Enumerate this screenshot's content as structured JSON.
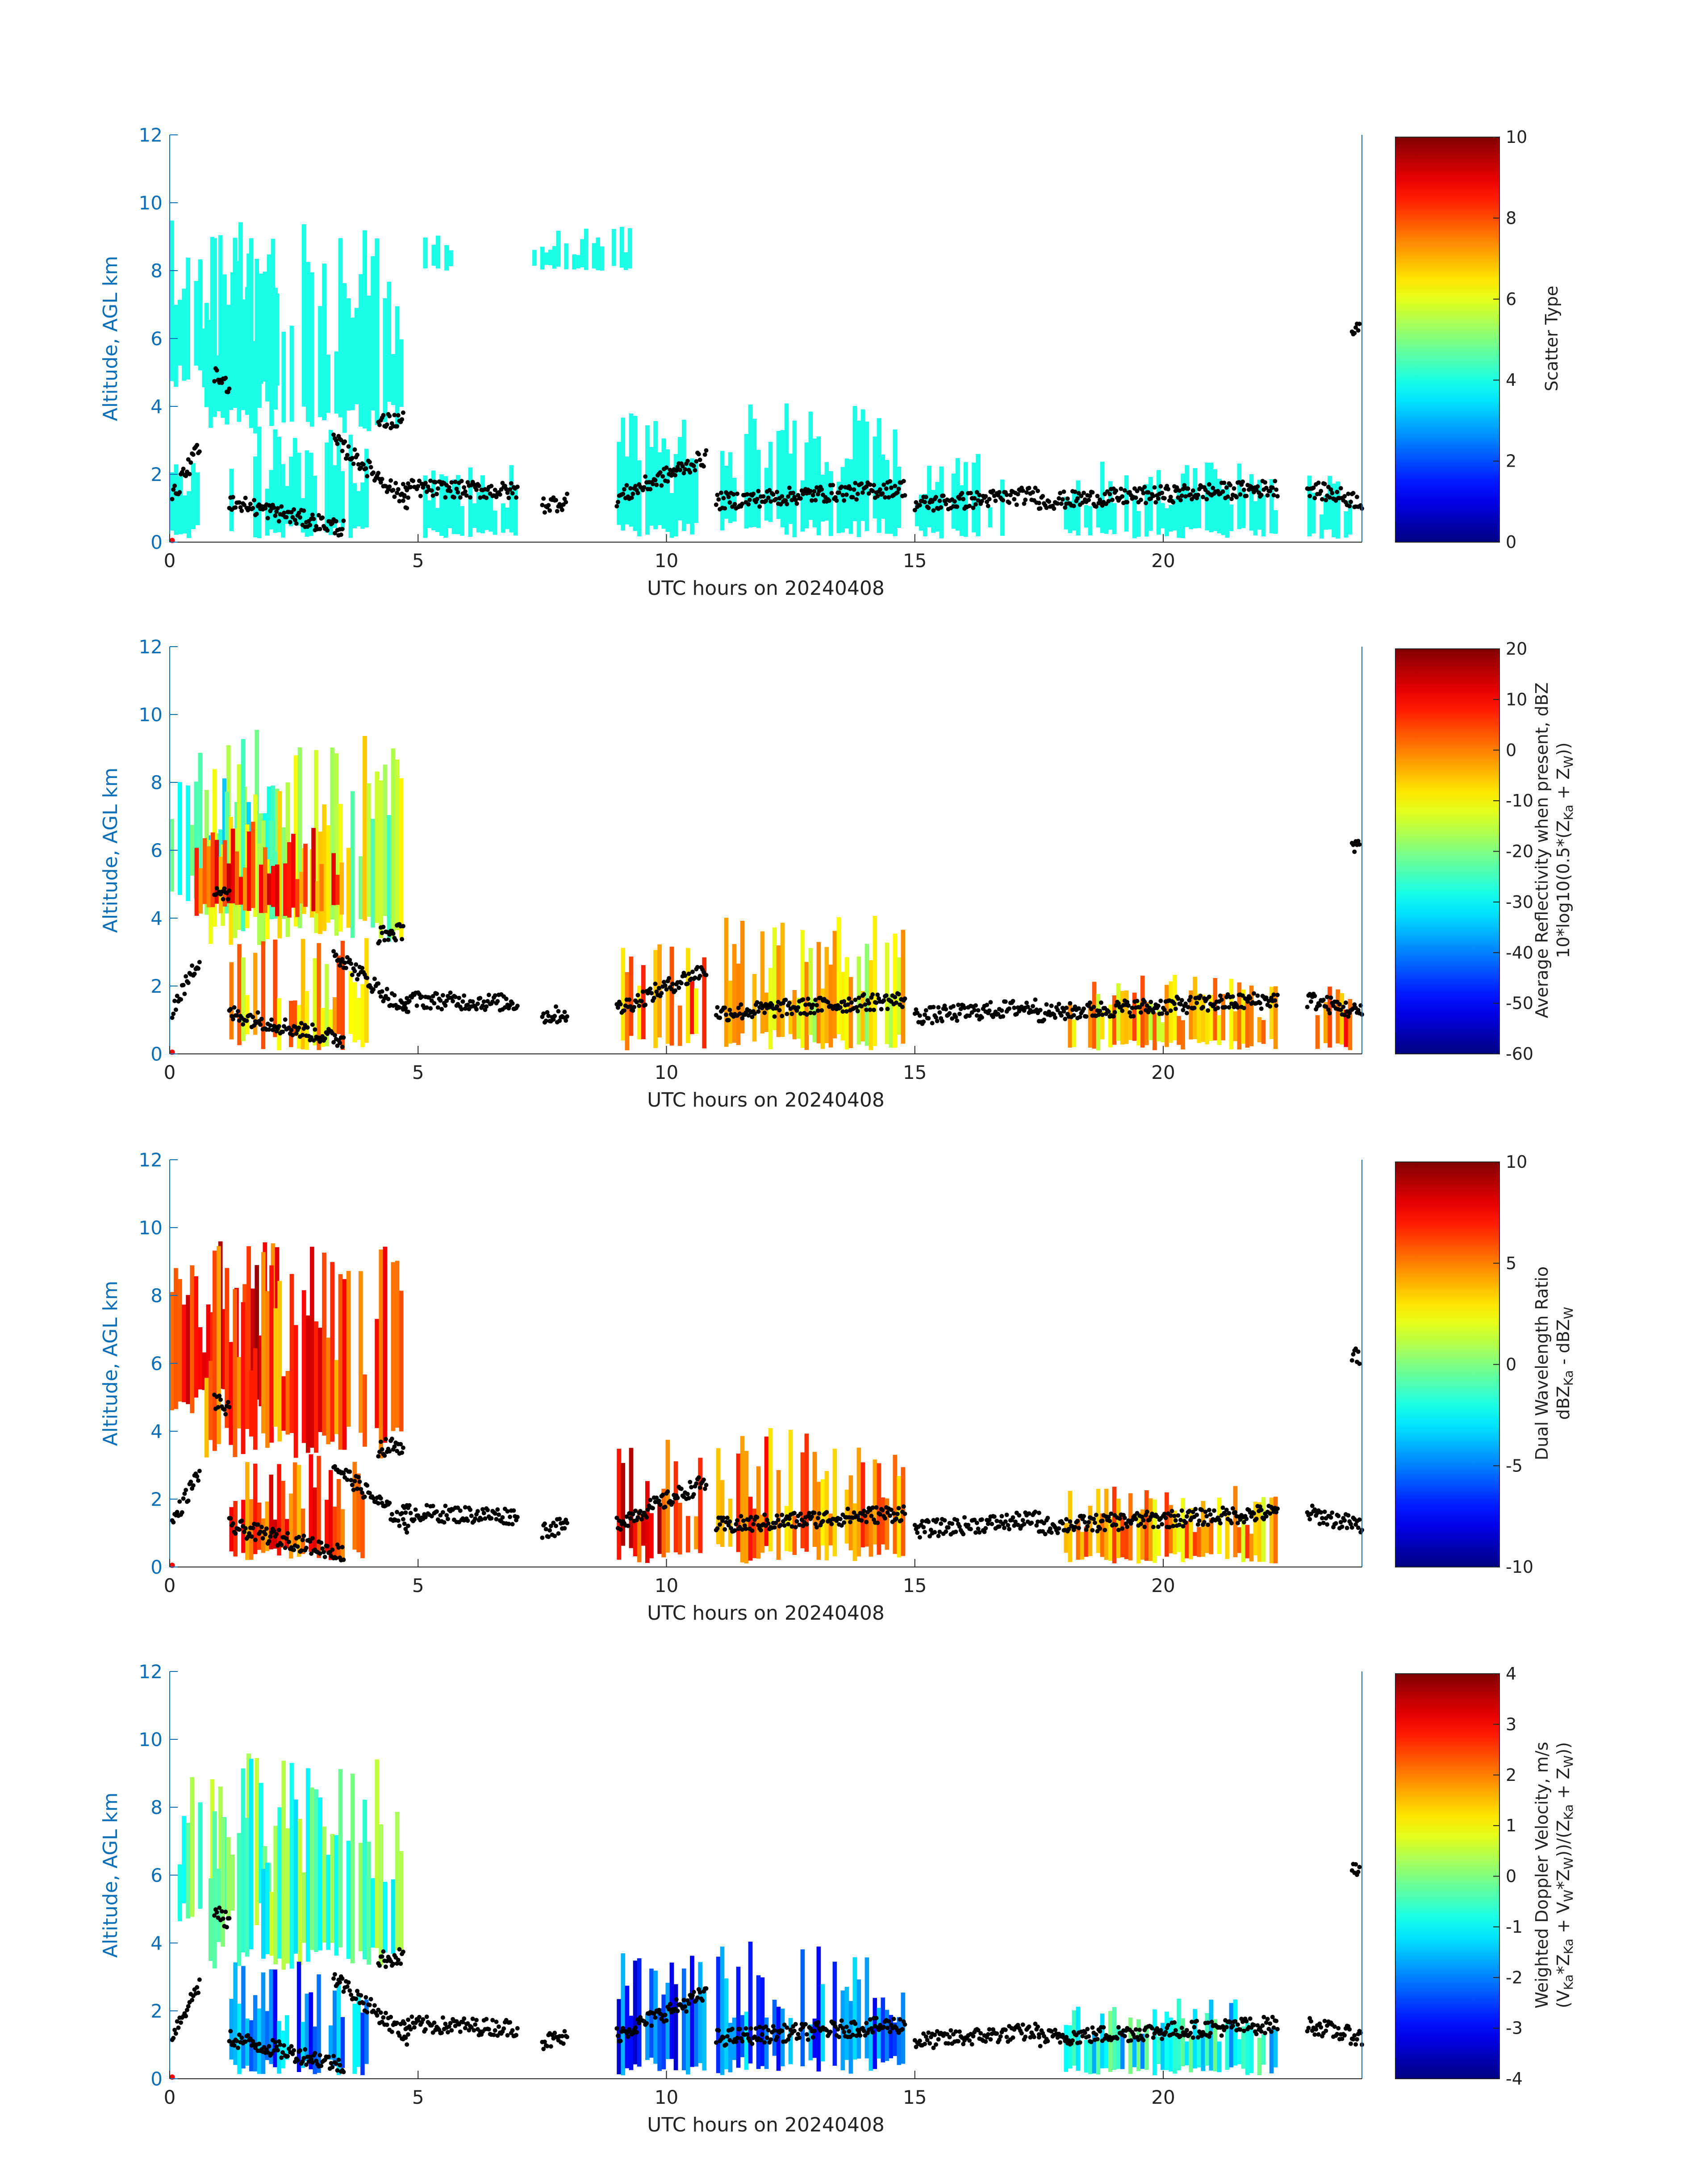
{
  "chart_data": [
    {
      "type": "heatmap",
      "panel": 1,
      "xlabel": "UTC hours on 20240408",
      "ylabel": "Altitude, AGL km",
      "xlim": [
        0,
        24
      ],
      "ylim": [
        0,
        12
      ],
      "xticks": [
        "0",
        "5",
        "10",
        "15",
        "20"
      ],
      "yticks": [
        "0",
        "2",
        "4",
        "6",
        "8",
        "10",
        "12"
      ],
      "colorbar": {
        "label_lines": [
          "Scatter Type"
        ],
        "min": 0,
        "max": 10,
        "ticks": [
          "0",
          "2",
          "4",
          "6",
          "8",
          "10"
        ]
      },
      "layers": [
        {
          "x0": 0.0,
          "x1": 0.6,
          "y0": 0.1,
          "y1": 3.0,
          "value": 4
        },
        {
          "x0": 0.0,
          "x1": 2.2,
          "y0": 4.5,
          "y1": 9.6,
          "value": 4
        },
        {
          "x0": 0.7,
          "x1": 4.7,
          "y0": 3.2,
          "y1": 9.5,
          "value": 4
        },
        {
          "x0": 5.1,
          "x1": 5.7,
          "y0": 8.0,
          "y1": 9.2,
          "value": 4
        },
        {
          "x0": 7.3,
          "x1": 9.3,
          "y0": 8.0,
          "y1": 9.3,
          "value": 4
        },
        {
          "x0": 1.2,
          "x1": 4.0,
          "y0": 0.1,
          "y1": 3.5,
          "value": 4
        },
        {
          "x0": 5.1,
          "x1": 7.0,
          "y0": 0.1,
          "y1": 2.3,
          "value": 4
        },
        {
          "x0": 9.0,
          "x1": 10.8,
          "y0": 0.1,
          "y1": 3.8,
          "value": 4
        },
        {
          "x0": 11.0,
          "x1": 14.8,
          "y0": 0.1,
          "y1": 4.1,
          "value": 4
        },
        {
          "x0": 15.0,
          "x1": 16.8,
          "y0": 0.1,
          "y1": 2.6,
          "value": 4
        },
        {
          "x0": 18.0,
          "x1": 22.3,
          "y0": 0.1,
          "y1": 2.4,
          "value": 4
        },
        {
          "x0": 22.9,
          "x1": 23.8,
          "y0": 0.1,
          "y1": 2.1,
          "value": 4
        }
      ]
    },
    {
      "type": "heatmap",
      "panel": 2,
      "xlabel": "UTC hours on 20240408",
      "ylabel": "Altitude, AGL km",
      "xlim": [
        0,
        24
      ],
      "ylim": [
        0,
        12
      ],
      "xticks": [
        "0",
        "5",
        "10",
        "15",
        "20"
      ],
      "yticks": [
        "0",
        "2",
        "4",
        "6",
        "8",
        "10",
        "12"
      ],
      "colorbar": {
        "label_lines": [
          "Average Reflectivity when present, dBZ",
          "10*log10(0.5*(Z",
          "Ka",
          " + Z",
          "W",
          "))"
        ],
        "min": -60,
        "max": 20,
        "ticks": [
          "-60",
          "-50",
          "-40",
          "-30",
          "-20",
          "-10",
          "0",
          "10",
          "20"
        ]
      },
      "layers": [
        {
          "x0": 0.0,
          "x1": 2.2,
          "y0": 4.5,
          "y1": 9.6,
          "value": -25
        },
        {
          "x0": 0.7,
          "x1": 4.7,
          "y0": 3.2,
          "y1": 9.5,
          "value": -15
        },
        {
          "x0": 0.5,
          "x1": 3.5,
          "y0": 4.0,
          "y1": 7.0,
          "value": 5
        },
        {
          "x0": 1.2,
          "x1": 4.0,
          "y0": 0.1,
          "y1": 3.5,
          "value": -5
        },
        {
          "x0": 9.0,
          "x1": 10.8,
          "y0": 0.1,
          "y1": 3.8,
          "value": 0
        },
        {
          "x0": 11.0,
          "x1": 14.8,
          "y0": 0.1,
          "y1": 4.1,
          "value": -10
        },
        {
          "x0": 18.0,
          "x1": 22.3,
          "y0": 0.1,
          "y1": 2.4,
          "value": -5
        },
        {
          "x0": 22.9,
          "x1": 23.8,
          "y0": 0.1,
          "y1": 2.1,
          "value": 0
        }
      ]
    },
    {
      "type": "heatmap",
      "panel": 3,
      "xlabel": "UTC hours on 20240408",
      "ylabel": "Altitude, AGL km",
      "xlim": [
        0,
        24
      ],
      "ylim": [
        0,
        12
      ],
      "xticks": [
        "0",
        "5",
        "10",
        "15",
        "20"
      ],
      "yticks": [
        "0",
        "2",
        "4",
        "6",
        "8",
        "10",
        "12"
      ],
      "colorbar": {
        "label_lines": [
          "Dual Wavelength Ratio",
          "dBZ",
          "Ka",
          " - dBZ",
          "W"
        ],
        "min": -10,
        "max": 10,
        "ticks": [
          "-10",
          "-5",
          "0",
          "5",
          "10"
        ]
      },
      "layers": [
        {
          "x0": 0.0,
          "x1": 2.2,
          "y0": 4.5,
          "y1": 9.6,
          "value": 7
        },
        {
          "x0": 0.7,
          "x1": 4.7,
          "y0": 3.2,
          "y1": 9.5,
          "value": 6
        },
        {
          "x0": 1.2,
          "x1": 4.0,
          "y0": 0.1,
          "y1": 3.5,
          "value": 6
        },
        {
          "x0": 9.0,
          "x1": 10.8,
          "y0": 0.1,
          "y1": 3.8,
          "value": 7
        },
        {
          "x0": 11.0,
          "x1": 14.8,
          "y0": 0.1,
          "y1": 4.1,
          "value": 5
        },
        {
          "x0": 18.0,
          "x1": 22.3,
          "y0": 0.1,
          "y1": 2.4,
          "value": 4
        }
      ]
    },
    {
      "type": "heatmap",
      "panel": 4,
      "xlabel": "UTC hours on 20240408",
      "ylabel": "Altitude, AGL km",
      "xlim": [
        0,
        24
      ],
      "ylim": [
        0,
        12
      ],
      "xticks": [
        "0",
        "5",
        "10",
        "15",
        "20"
      ],
      "yticks": [
        "0",
        "2",
        "4",
        "6",
        "8",
        "10",
        "12"
      ],
      "colorbar": {
        "label_lines": [
          "Weighted Doppler Velocity, m/s",
          "(V",
          "Ka",
          "*Z",
          "Ka",
          " + V",
          "W",
          "*Z",
          "W",
          "))/(Z",
          "Ka",
          " + Z",
          "W",
          "))"
        ],
        "min": -4,
        "max": 4,
        "ticks": [
          "-4",
          "-3",
          "-2",
          "-1",
          "0",
          "1",
          "2",
          "3",
          "4"
        ]
      },
      "layers": [
        {
          "x0": 0.0,
          "x1": 2.2,
          "y0": 4.5,
          "y1": 9.6,
          "value": 0
        },
        {
          "x0": 0.7,
          "x1": 4.7,
          "y0": 3.2,
          "y1": 9.5,
          "value": -0.3
        },
        {
          "x0": 1.2,
          "x1": 4.0,
          "y0": 0.1,
          "y1": 3.5,
          "value": -2
        },
        {
          "x0": 9.0,
          "x1": 10.8,
          "y0": 0.1,
          "y1": 3.8,
          "value": -2.5
        },
        {
          "x0": 11.0,
          "x1": 14.8,
          "y0": 0.1,
          "y1": 4.1,
          "value": -2
        },
        {
          "x0": 18.0,
          "x1": 22.3,
          "y0": 0.1,
          "y1": 2.4,
          "value": -1
        }
      ]
    }
  ],
  "cloud_base_points": {
    "marker_color": "#000000",
    "segments": [
      {
        "x0": 0.05,
        "x1": 0.6,
        "y0": 1.3,
        "y1": 2.8
      },
      {
        "x0": 0.9,
        "x1": 1.2,
        "y0": 4.9,
        "y1": 4.6
      },
      {
        "x0": 1.2,
        "x1": 3.5,
        "y0": 1.2,
        "y1": 0.4
      },
      {
        "x0": 3.3,
        "x1": 4.8,
        "y0": 3.0,
        "y1": 1.2
      },
      {
        "x0": 4.2,
        "x1": 4.7,
        "y0": 3.5,
        "y1": 3.6
      },
      {
        "x0": 4.7,
        "x1": 7.0,
        "y0": 1.6,
        "y1": 1.5
      },
      {
        "x0": 7.5,
        "x1": 8.0,
        "y0": 1.1,
        "y1": 1.2
      },
      {
        "x0": 9.0,
        "x1": 10.8,
        "y0": 1.3,
        "y1": 2.5
      },
      {
        "x0": 11.0,
        "x1": 14.8,
        "y0": 1.2,
        "y1": 1.6
      },
      {
        "x0": 15.0,
        "x1": 17.5,
        "y0": 1.1,
        "y1": 1.4
      },
      {
        "x0": 17.5,
        "x1": 22.3,
        "y0": 1.2,
        "y1": 1.6
      },
      {
        "x0": 22.9,
        "x1": 24.0,
        "y0": 1.6,
        "y1": 1.2
      },
      {
        "x0": 23.8,
        "x1": 23.95,
        "y0": 6.2,
        "y1": 6.2
      }
    ]
  }
}
